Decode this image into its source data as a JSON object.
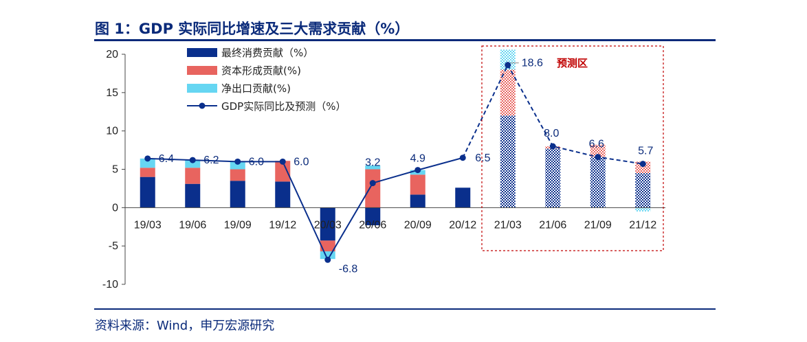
{
  "header": {
    "title": "图 1：GDP 实际同比增速及三大需求贡献（%）"
  },
  "footer": {
    "source": "资料来源：Wind，申万宏源研究"
  },
  "chart_data": {
    "type": "bar",
    "stacked": true,
    "categories": [
      "19/03",
      "19/06",
      "19/09",
      "19/12",
      "20/03",
      "20/06",
      "20/09",
      "20/12",
      "21/03",
      "21/06",
      "21/09",
      "21/12"
    ],
    "forecast_start_index": 8,
    "forecast_label": "预测区",
    "ylim": [
      -10,
      20
    ],
    "yticks": [
      -10,
      -5,
      0,
      5,
      10,
      15,
      20
    ],
    "ytick_labels": [
      "-10",
      "-5",
      "0",
      "5",
      "10",
      "15",
      "20"
    ],
    "legend_position": "top-left",
    "colors": {
      "consumption": "#0a2f8c",
      "capital": "#e8645f",
      "net_export": "#66d6f2",
      "gdp": "#0a2f8c",
      "forecast_box": "#c00000",
      "title": "#0a2a7a"
    },
    "series": [
      {
        "name": "最终消费贡献（%）",
        "key": "consumption",
        "values": [
          4.0,
          3.1,
          3.5,
          3.4,
          -4.3,
          -2.3,
          1.7,
          2.6,
          12.0,
          7.7,
          6.6,
          4.5
        ]
      },
      {
        "name": "资本形成贡献(%)",
        "key": "capital",
        "values": [
          1.2,
          2.1,
          1.5,
          2.7,
          -1.4,
          5.0,
          2.6,
          0.0,
          6.0,
          0.3,
          1.6,
          1.5
        ]
      },
      {
        "name": "净出口贡献(%)",
        "key": "net_export",
        "values": [
          1.2,
          1.0,
          1.0,
          0.0,
          -1.0,
          0.5,
          0.6,
          0.0,
          2.6,
          0.0,
          0.0,
          -0.5
        ]
      },
      {
        "name": "GDP实际同比及预测（%）",
        "key": "gdp",
        "type": "line",
        "values": [
          6.4,
          6.2,
          6.0,
          6.0,
          -6.8,
          3.2,
          4.9,
          6.5,
          18.6,
          8.0,
          6.6,
          5.7
        ],
        "labels": [
          "6.4",
          "6.2",
          "6.0",
          "6.0",
          "-6.8",
          "3.2",
          "4.9",
          "6.5",
          "18.6",
          "8.0",
          "6.6",
          "5.7"
        ]
      }
    ]
  }
}
